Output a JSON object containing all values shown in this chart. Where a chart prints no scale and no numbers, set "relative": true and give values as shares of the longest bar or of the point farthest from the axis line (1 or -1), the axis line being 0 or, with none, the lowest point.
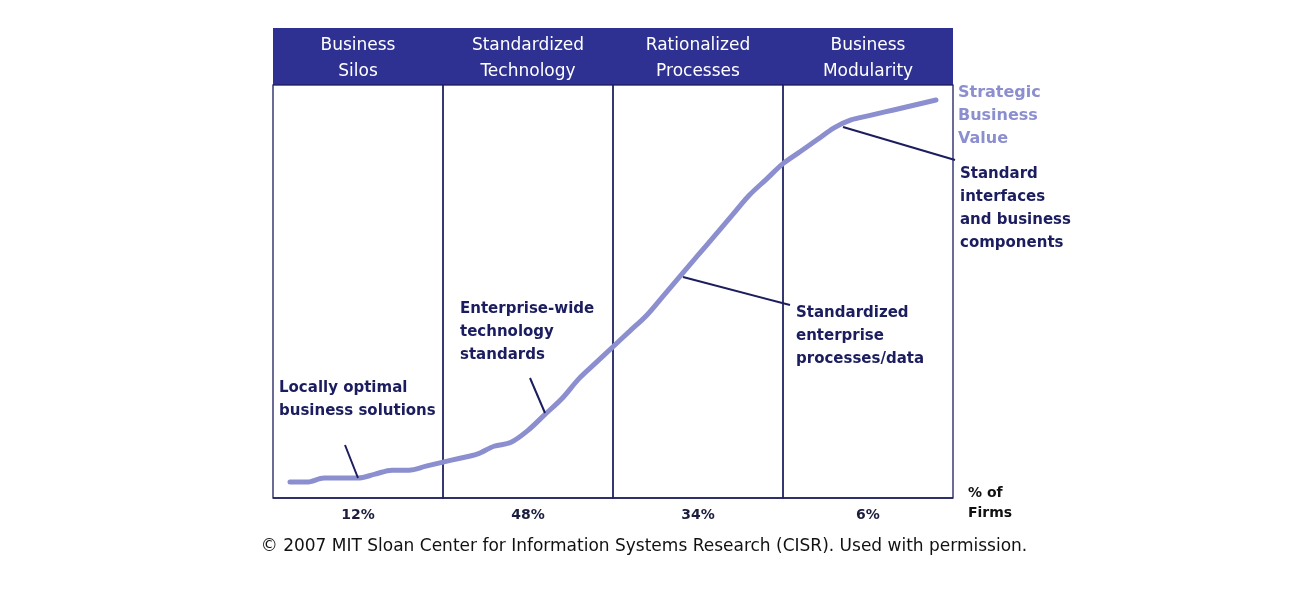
{
  "chart_data": {
    "type": "line",
    "relative": true,
    "xlabel": "% of\nFirms",
    "categories": [
      null,
      null,
      null,
      null,
      null,
      "12%",
      null,
      null,
      null,
      null,
      null,
      null,
      null,
      null,
      null,
      "48%",
      null,
      null,
      null,
      null,
      null,
      null,
      null,
      null,
      null,
      "34%",
      null,
      null,
      null,
      null,
      null,
      null,
      null,
      null,
      null,
      "6%",
      null,
      null,
      null,
      null,
      null
    ],
    "series": [
      {
        "name": "Strategic Business Value",
        "color": "#8c8fcf",
        "values": [
          null,
          0.04,
          0.04,
          0.05,
          0.05,
          0.05,
          0.06,
          0.07,
          0.07,
          0.08,
          0.09,
          0.1,
          0.11,
          0.13,
          0.14,
          0.17,
          0.21,
          0.25,
          0.3,
          0.34,
          0.38,
          0.42,
          0.46,
          0.51,
          0.56,
          0.61,
          0.66,
          0.71,
          0.76,
          0.8,
          0.84,
          0.87,
          0.9,
          0.93,
          0.95,
          0.96,
          0.97,
          0.98,
          0.99,
          1.0,
          null
        ]
      }
    ],
    "annotations": [
      "Business\nSilos",
      "Standardized\nTechnology",
      "Rationalized\nProcesses",
      "Business\nModularity",
      "Locally optimal\nbusiness solutions",
      "Enterprise-wide\ntechnology\nstandards",
      "Standardized\nenterprise\nprocesses/data",
      "Standard\ninterfaces\nand business\ncomponents",
      "© 2007 MIT Sloan Center for Information Systems Research (CISR). Used with permission."
    ],
    "line_style": "solid"
  }
}
